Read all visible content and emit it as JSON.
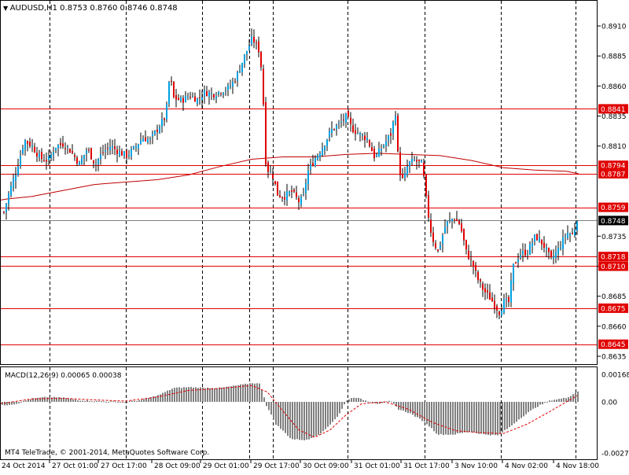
{
  "header": {
    "menu_glyph": "▼",
    "symbol": "AUDUSD,H1",
    "ohlc": "0.8753 0.8760 0.8746 0.8748"
  },
  "copyright": "MT4 TeleTrade, © 2001-2014, MetaQuotes Software Corp.",
  "macd_label": "MACD(12,26,9) 0.00065 0.00038",
  "colors": {
    "background": "#ffffff",
    "frame": "#000000",
    "candle_up": "#00a0e0",
    "candle_down": "#e00000",
    "wick": "#000000",
    "level_line": "#e00000",
    "ma_line": "#c00000",
    "macd_hist": "#808080",
    "macd_signal": "#e00000",
    "current_price_line": "#808080",
    "period_separator": "#000000"
  },
  "chart_data": [
    {
      "type": "candlestick",
      "symbol": "AUDUSD",
      "timeframe": "H1",
      "ylim": [
        0.863,
        0.8925
      ],
      "price_ticks": [
        "0.8910",
        "0.8885",
        "0.8860",
        "0.8835",
        "0.8810",
        "0.8735",
        "0.8710",
        "0.8685",
        "0.8660",
        "0.8635"
      ],
      "x_ticks": [
        "24 Oct 2014",
        "27 Oct 01:00",
        "27 Oct 17:00",
        "28 Oct 09:00",
        "29 Oct 01:00",
        "29 Oct 17:00",
        "30 Oct 09:00",
        "31 Oct 01:00",
        "31 Oct 17:00",
        "3 Nov 10:00",
        "4 Nov 02:00",
        "4 Nov 18:00"
      ],
      "period_separators": [
        "27 Oct 01:00",
        "27 Oct 17:00",
        "28 Oct 09:00",
        "29 Oct 01:00",
        "29 Oct 17:00",
        "30 Oct 09:00",
        "31 Oct 01:00",
        "31 Oct 17:00",
        "3 Nov 10:00",
        "4 Nov 02:00",
        "4 Nov 18:00"
      ],
      "horizontal_levels": [
        "0.8841",
        "0.8794",
        "0.8787",
        "0.8759",
        "0.8718",
        "0.8710",
        "0.8675",
        "0.8645"
      ],
      "current_price": "0.8748",
      "moving_average_path": [
        [
          0,
          0.8765
        ],
        [
          10,
          0.8766
        ],
        [
          40,
          0.8768
        ],
        [
          80,
          0.8773
        ],
        [
          120,
          0.8778
        ],
        [
          160,
          0.878
        ],
        [
          200,
          0.8782
        ],
        [
          240,
          0.8786
        ],
        [
          280,
          0.8793
        ],
        [
          320,
          0.8799
        ],
        [
          360,
          0.8801
        ],
        [
          400,
          0.8801
        ],
        [
          440,
          0.8803
        ],
        [
          480,
          0.8804
        ],
        [
          520,
          0.8803
        ],
        [
          560,
          0.8802
        ],
        [
          600,
          0.8798
        ],
        [
          640,
          0.8792
        ],
        [
          680,
          0.879
        ],
        [
          720,
          0.8789
        ],
        [
          736,
          0.8787
        ]
      ],
      "candle_anchors": [
        [
          4,
          0.8755
        ],
        [
          10,
          0.877
        ],
        [
          20,
          0.879
        ],
        [
          30,
          0.8815
        ],
        [
          40,
          0.881
        ],
        [
          50,
          0.88
        ],
        [
          60,
          0.8798
        ],
        [
          70,
          0.881
        ],
        [
          80,
          0.8812
        ],
        [
          90,
          0.8805
        ],
        [
          100,
          0.8795
        ],
        [
          110,
          0.8808
        ],
        [
          120,
          0.8795
        ],
        [
          130,
          0.8805
        ],
        [
          140,
          0.881
        ],
        [
          150,
          0.8805
        ],
        [
          160,
          0.8802
        ],
        [
          170,
          0.8808
        ],
        [
          180,
          0.8817
        ],
        [
          190,
          0.8815
        ],
        [
          200,
          0.8825
        ],
        [
          210,
          0.8835
        ],
        [
          215,
          0.887
        ],
        [
          220,
          0.885
        ],
        [
          230,
          0.8848
        ],
        [
          240,
          0.8852
        ],
        [
          250,
          0.8849
        ],
        [
          260,
          0.8855
        ],
        [
          270,
          0.8853
        ],
        [
          280,
          0.8856
        ],
        [
          290,
          0.8858
        ],
        [
          300,
          0.8868
        ],
        [
          310,
          0.8885
        ],
        [
          320,
          0.89
        ],
        [
          328,
          0.889
        ],
        [
          333,
          0.8868
        ],
        [
          336,
          0.88
        ],
        [
          340,
          0.879
        ],
        [
          346,
          0.8785
        ],
        [
          352,
          0.877
        ],
        [
          360,
          0.8768
        ],
        [
          370,
          0.8772
        ],
        [
          380,
          0.8763
        ],
        [
          385,
          0.8768
        ],
        [
          390,
          0.8788
        ],
        [
          400,
          0.88
        ],
        [
          410,
          0.881
        ],
        [
          420,
          0.8823
        ],
        [
          430,
          0.8828
        ],
        [
          440,
          0.8835
        ],
        [
          446,
          0.8825
        ],
        [
          456,
          0.882
        ],
        [
          466,
          0.8816
        ],
        [
          476,
          0.88
        ],
        [
          486,
          0.881
        ],
        [
          496,
          0.882
        ],
        [
          502,
          0.8838
        ],
        [
          506,
          0.8792
        ],
        [
          512,
          0.878
        ],
        [
          518,
          0.8795
        ],
        [
          526,
          0.8798
        ],
        [
          536,
          0.8795
        ],
        [
          542,
          0.876
        ],
        [
          548,
          0.8735
        ],
        [
          556,
          0.8722
        ],
        [
          566,
          0.8745
        ],
        [
          576,
          0.875
        ],
        [
          584,
          0.8745
        ],
        [
          592,
          0.8722
        ],
        [
          600,
          0.8712
        ],
        [
          606,
          0.87
        ],
        [
          614,
          0.869
        ],
        [
          624,
          0.8682
        ],
        [
          634,
          0.8672
        ],
        [
          640,
          0.868
        ],
        [
          646,
          0.868
        ],
        [
          652,
          0.871
        ],
        [
          660,
          0.872
        ],
        [
          670,
          0.8722
        ],
        [
          680,
          0.8735
        ],
        [
          690,
          0.8728
        ],
        [
          700,
          0.8715
        ],
        [
          710,
          0.8725
        ],
        [
          720,
          0.8738
        ],
        [
          728,
          0.8736
        ],
        [
          734,
          0.8753
        ]
      ]
    },
    {
      "type": "bar",
      "indicator": "MACD",
      "params": "12,26,9",
      "values_shown": [
        "0.00065",
        "0.00038"
      ],
      "ylim": [
        -0.00274,
        0.00168
      ],
      "y_ticks": [
        "0.00168",
        "0.00",
        "-0.00274"
      ],
      "histogram_path": [
        [
          0,
          -0.0002
        ],
        [
          20,
          -0.0001
        ],
        [
          40,
          0.0002
        ],
        [
          60,
          0.0003
        ],
        [
          80,
          0.00025
        ],
        [
          100,
          0.0001
        ],
        [
          120,
          5e-05
        ],
        [
          140,
          2e-05
        ],
        [
          160,
          0.0
        ],
        [
          180,
          0.00012
        ],
        [
          200,
          0.0004
        ],
        [
          220,
          0.00085
        ],
        [
          240,
          0.0009
        ],
        [
          260,
          0.00086
        ],
        [
          280,
          0.00085
        ],
        [
          300,
          0.001
        ],
        [
          320,
          0.00115
        ],
        [
          330,
          0.0011
        ],
        [
          338,
          -0.0002
        ],
        [
          350,
          -0.0012
        ],
        [
          370,
          -0.002
        ],
        [
          390,
          -0.00205
        ],
        [
          410,
          -0.0016
        ],
        [
          430,
          -0.0007
        ],
        [
          440,
          0.0001
        ],
        [
          450,
          0.0003
        ],
        [
          466,
          5e-05
        ],
        [
          480,
          -0.0001
        ],
        [
          496,
          5e-05
        ],
        [
          506,
          -0.0004
        ],
        [
          520,
          -0.0006
        ],
        [
          540,
          -0.0011
        ],
        [
          556,
          -0.00175
        ],
        [
          576,
          -0.00175
        ],
        [
          596,
          -0.0016
        ],
        [
          616,
          -0.00175
        ],
        [
          632,
          -0.0018
        ],
        [
          646,
          -0.0014
        ],
        [
          660,
          -0.0009
        ],
        [
          680,
          -0.0003
        ],
        [
          700,
          0.0001
        ],
        [
          720,
          0.00025
        ],
        [
          734,
          0.00065
        ]
      ],
      "signal_path": [
        [
          0,
          -0.0001
        ],
        [
          40,
          0.00018
        ],
        [
          80,
          0.00022
        ],
        [
          120,
          0.00012
        ],
        [
          160,
          5e-05
        ],
        [
          200,
          0.0003
        ],
        [
          240,
          0.0007
        ],
        [
          280,
          0.00082
        ],
        [
          320,
          0.001
        ],
        [
          340,
          0.0006
        ],
        [
          360,
          -0.0005
        ],
        [
          380,
          -0.0015
        ],
        [
          400,
          -0.0019
        ],
        [
          420,
          -0.0015
        ],
        [
          440,
          -0.0007
        ],
        [
          460,
          -0.0001
        ],
        [
          490,
          0.0
        ],
        [
          520,
          -0.0004
        ],
        [
          550,
          -0.0011
        ],
        [
          580,
          -0.00155
        ],
        [
          610,
          -0.00165
        ],
        [
          640,
          -0.0017
        ],
        [
          670,
          -0.0012
        ],
        [
          700,
          -0.0005
        ],
        [
          734,
          0.00038
        ]
      ]
    }
  ]
}
